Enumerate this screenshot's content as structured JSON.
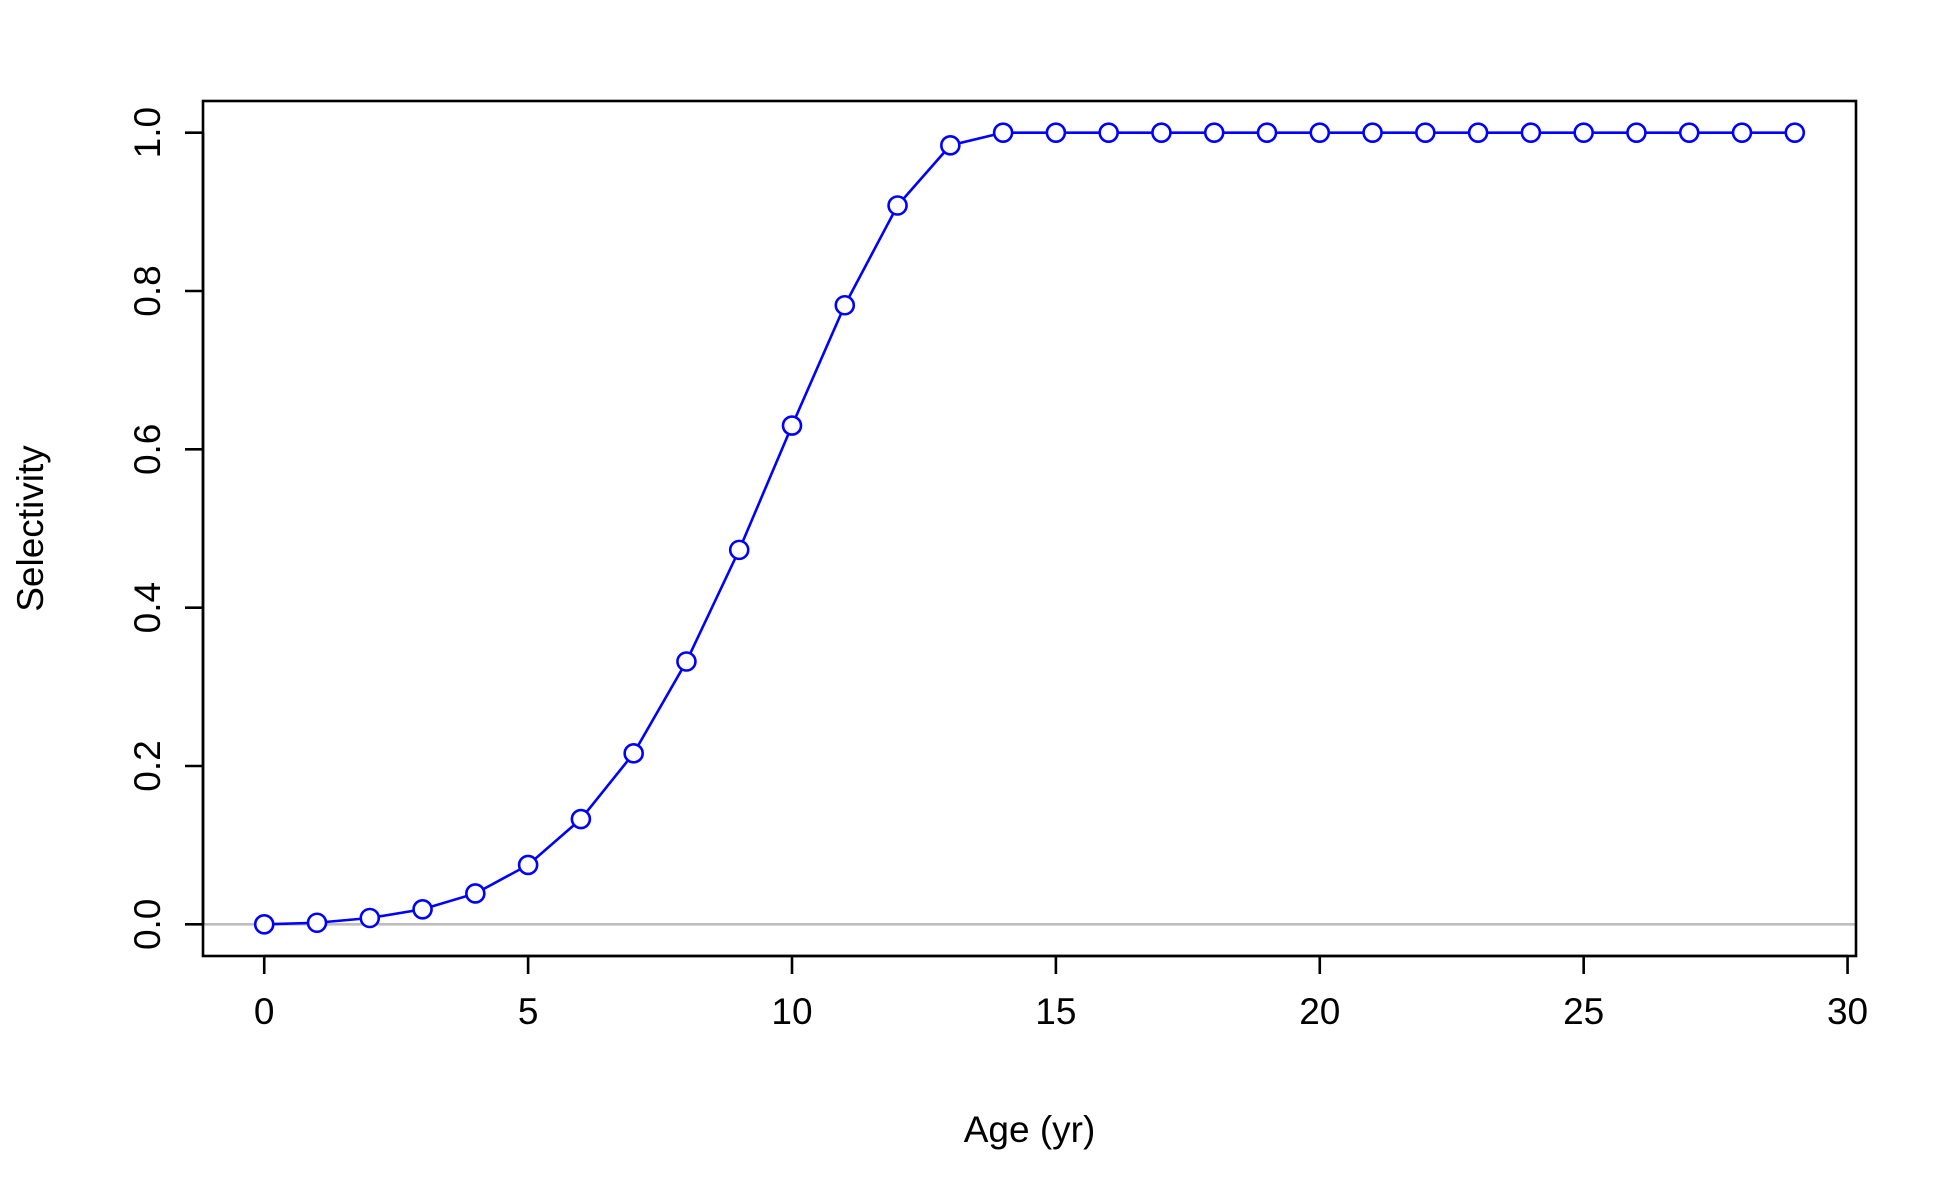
{
  "chart_data": {
    "type": "line",
    "title": "",
    "xlabel": "Age (yr)",
    "ylabel": "Selectivity",
    "xlim": [
      -1.16,
      30.16
    ],
    "ylim": [
      -0.04,
      1.04
    ],
    "x_ticks": [
      0,
      5,
      10,
      15,
      20,
      25,
      30
    ],
    "y_ticks": [
      0.0,
      0.2,
      0.4,
      0.6,
      0.8,
      1.0
    ],
    "x_tick_labels": [
      "0",
      "5",
      "10",
      "15",
      "20",
      "25",
      "30"
    ],
    "y_tick_labels": [
      "0.0",
      "0.2",
      "0.4",
      "0.6",
      "0.8",
      "1.0"
    ],
    "grid": false,
    "legend": "none",
    "reference_line": {
      "y": 0,
      "color": "#bebebe"
    },
    "series": [
      {
        "color": "#0000ff",
        "marker": "open-circle",
        "x": [
          0,
          1,
          2,
          3,
          4,
          5,
          6,
          7,
          8,
          9,
          10,
          11,
          12,
          13,
          14,
          15,
          16,
          17,
          18,
          19,
          20,
          21,
          22,
          23,
          24,
          25,
          26,
          27,
          28,
          29
        ],
        "y": [
          0.0,
          0.002,
          0.008,
          0.019,
          0.039,
          0.075,
          0.133,
          0.216,
          0.332,
          0.473,
          0.63,
          0.782,
          0.908,
          0.984,
          1.0,
          1.0,
          1.0,
          1.0,
          1.0,
          1.0,
          1.0,
          1.0,
          1.0,
          1.0,
          1.0,
          1.0,
          1.0,
          1.0,
          1.0,
          1.0
        ]
      }
    ]
  }
}
